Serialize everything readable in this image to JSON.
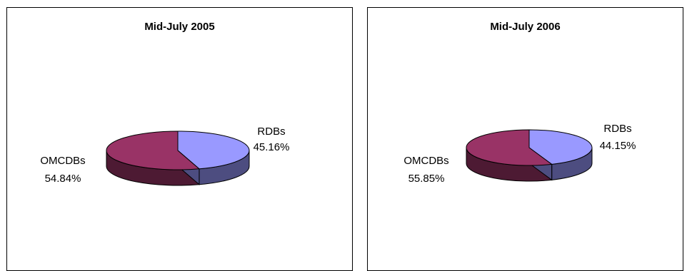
{
  "chart_data": [
    {
      "type": "pie",
      "title": "Mid-July 2005",
      "slices": [
        {
          "label": "RDBs",
          "value_label": "45.16%",
          "value": 45.16,
          "color": "#9999ff",
          "side_color": "#4d4d80"
        },
        {
          "label": "OMCDBs",
          "value_label": "54.84%",
          "value": 54.84,
          "color": "#993366",
          "side_color": "#4d1a33"
        }
      ],
      "style": "3d",
      "legend": "none"
    },
    {
      "type": "pie",
      "title": "Mid-July 2006",
      "slices": [
        {
          "label": "RDBs",
          "value_label": "44.15%",
          "value": 44.15,
          "color": "#9999ff",
          "side_color": "#4d4d80"
        },
        {
          "label": "OMCDBs",
          "value_label": "55.85%",
          "value": 55.85,
          "color": "#993366",
          "side_color": "#4d1a33"
        }
      ],
      "style": "3d",
      "legend": "none"
    }
  ]
}
